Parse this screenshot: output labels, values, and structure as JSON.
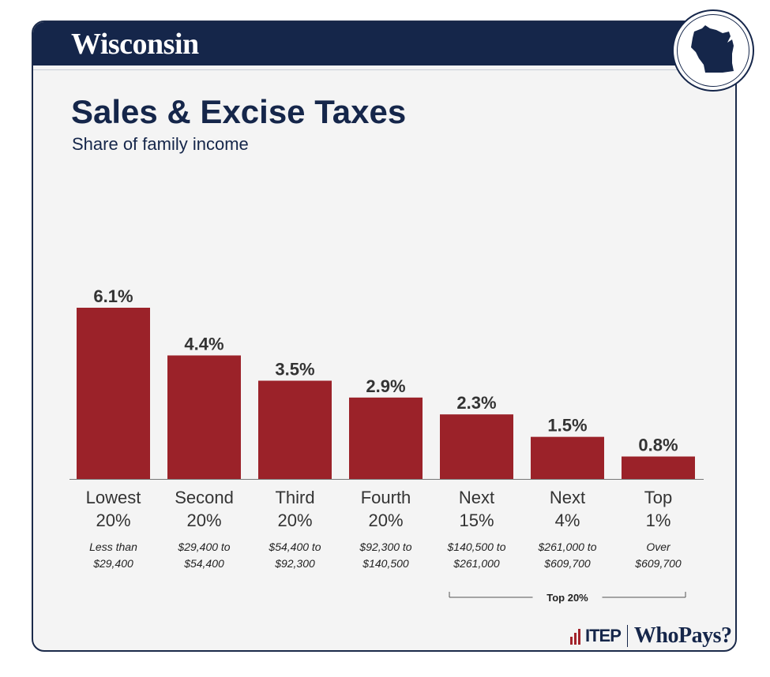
{
  "header": {
    "state": "Wisconsin",
    "badge_icon": "wisconsin-state-icon"
  },
  "chart_data": {
    "type": "bar",
    "title": "Sales & Excise Taxes",
    "subtitle": "Share of family income",
    "categories": [
      [
        "Lowest",
        "20%"
      ],
      [
        "Second",
        "20%"
      ],
      [
        "Third",
        "20%"
      ],
      [
        "Fourth",
        "20%"
      ],
      [
        "Next",
        "15%"
      ],
      [
        "Next",
        "4%"
      ],
      [
        "Top",
        "1%"
      ]
    ],
    "income_ranges": [
      [
        "Less than",
        "$29,400"
      ],
      [
        "$29,400 to",
        "$54,400"
      ],
      [
        "$54,400 to",
        "$92,300"
      ],
      [
        "$92,300 to",
        "$140,500"
      ],
      [
        "$140,500 to",
        "$261,000"
      ],
      [
        "$261,000 to",
        "$609,700"
      ],
      [
        "Over",
        "$609,700"
      ]
    ],
    "values": [
      6.1,
      4.4,
      3.5,
      2.9,
      2.3,
      1.5,
      0.8
    ],
    "value_labels": [
      "6.1%",
      "4.4%",
      "3.5%",
      "2.9%",
      "2.3%",
      "1.5%",
      "0.8%"
    ],
    "ylim": [
      0,
      6.1
    ],
    "bar_color": "#9b2229",
    "grouping": {
      "label": "Top 20%",
      "from_index": 4,
      "to_index": 6
    }
  },
  "footer": {
    "org": "ITEP",
    "product": "WhoPays?"
  }
}
